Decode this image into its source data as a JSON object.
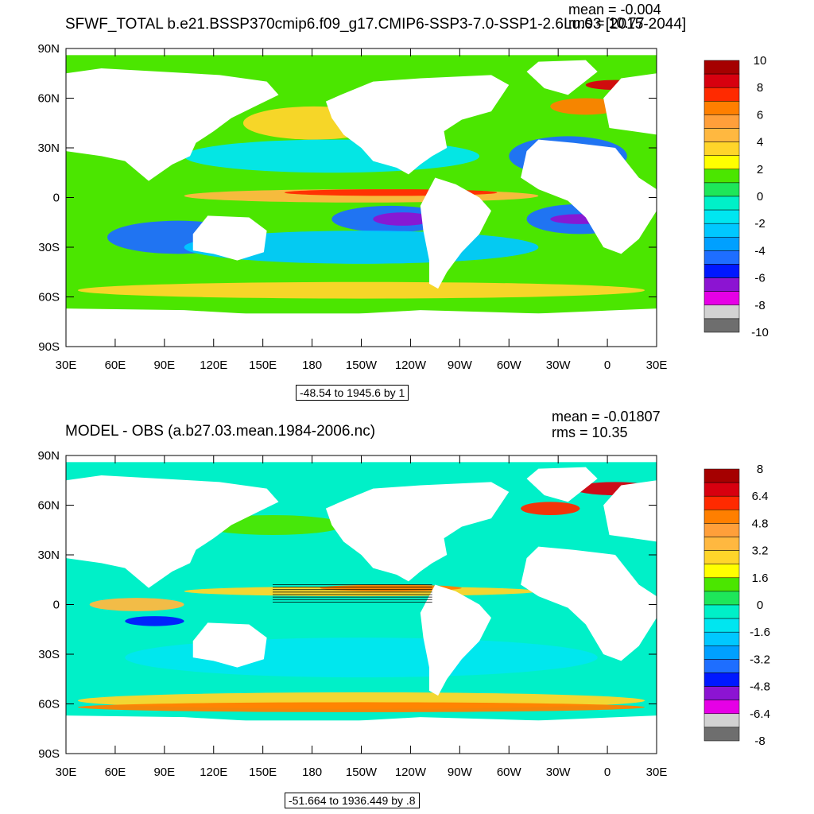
{
  "chart_data": [
    {
      "type": "heatmap",
      "title": "SFWF_TOTAL b.e21.BSSP370cmip6.f09_g17.CMIP6-SSP3-7.0-SSP1-2.6Lu.03 [2015-2044]",
      "mean_text": "mean = -0.004",
      "rms_text": "rms = 10.77",
      "range_text": "-48.54 to 1945.6 by 1",
      "lat_ticks": [
        "90N",
        "60N",
        "30N",
        "0",
        "30S",
        "60S",
        "90S"
      ],
      "lon_ticks": [
        "30E",
        "60E",
        "90E",
        "120E",
        "150E",
        "180",
        "150W",
        "120W",
        "90W",
        "60W",
        "30W",
        "0",
        "30E"
      ],
      "colorbar": {
        "labels": [
          "10",
          "8",
          "6",
          "4",
          "2",
          "0",
          "-2",
          "-4",
          "-6",
          "-8",
          "-10"
        ],
        "colors": [
          "#a50000",
          "#d7000f",
          "#ff2a00",
          "#ff7f00",
          "#ff9f3a",
          "#ffb840",
          "#ffd52a",
          "#ffff00",
          "#4be600",
          "#1ee65a",
          "#00f0c8",
          "#00e6f0",
          "#00c8ff",
          "#00a0ff",
          "#1e6eff",
          "#0018ff",
          "#8c14d2",
          "#e600e6",
          "#d2d2d2",
          "#6e6e6e"
        ]
      },
      "contour_lines": false
    },
    {
      "type": "heatmap",
      "title": "MODEL - OBS (a.b27.03.mean.1984-2006.nc)",
      "mean_text": "mean = -0.01807",
      "rms_text": "rms = 10.35",
      "range_text": "-51.664 to 1936.449 by .8",
      "lat_ticks": [
        "90N",
        "60N",
        "30N",
        "0",
        "30S",
        "60S",
        "90S"
      ],
      "lon_ticks": [
        "30E",
        "60E",
        "90E",
        "120E",
        "150E",
        "180",
        "150W",
        "120W",
        "90W",
        "60W",
        "30W",
        "0",
        "30E"
      ],
      "colorbar": {
        "labels": [
          "8",
          "6.4",
          "4.8",
          "3.2",
          "1.6",
          "0",
          "-1.6",
          "-3.2",
          "-4.8",
          "-6.4",
          "-8"
        ],
        "colors": [
          "#a50000",
          "#d7000f",
          "#ff2a00",
          "#ff7f00",
          "#ff9f3a",
          "#ffb840",
          "#ffd52a",
          "#ffff00",
          "#4be600",
          "#1ee65a",
          "#00f0c8",
          "#00e6f0",
          "#00c8ff",
          "#00a0ff",
          "#1e6eff",
          "#0018ff",
          "#8c14d2",
          "#e600e6",
          "#d2d2d2",
          "#6e6e6e"
        ]
      },
      "contour_lines": true
    }
  ]
}
